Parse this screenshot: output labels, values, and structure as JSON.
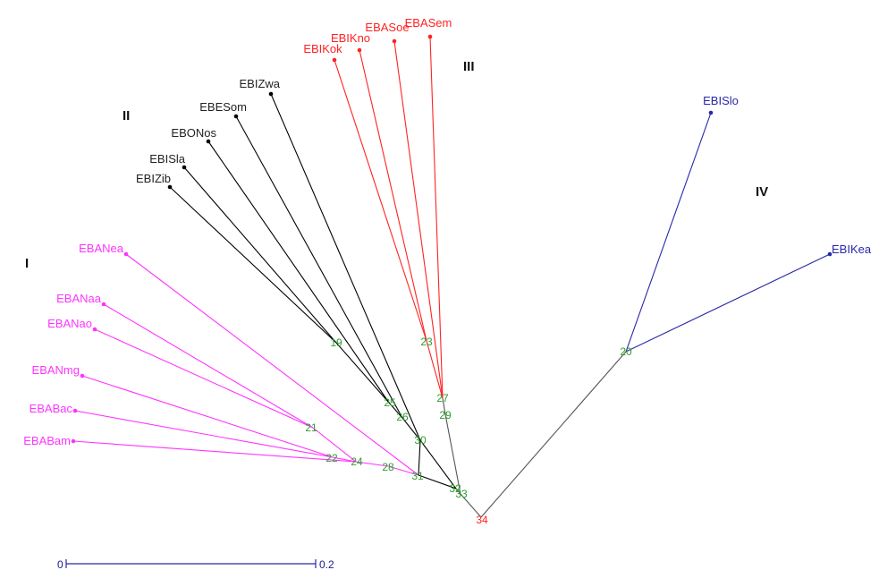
{
  "colors": {
    "cluster_I": "#ff33ff",
    "cluster_II": "#000000",
    "cluster_III": "#ff2222",
    "cluster_IV": "#2828aa",
    "node_label": "#2e9e2e",
    "root_label": "#ff2222",
    "trunk": "#777777"
  },
  "cluster_labels": {
    "I": "I",
    "II": "II",
    "III": "III",
    "IV": "IV"
  },
  "leaves": {
    "EBANea": "EBANea",
    "EBANaa": "EBANaa",
    "EBANao": "EBANao",
    "EBANmg": "EBANmg",
    "EBABac": "EBABac",
    "EBABam": "EBABam",
    "EBIZib": "EBIZib",
    "EBISla": "EBISla",
    "EBONos": "EBONos",
    "EBESom": "EBESom",
    "EBIZwa": "EBIZwa",
    "EBIKok": "EBIKok",
    "EBIKno": "EBIKno",
    "EBASoe": "EBASoe",
    "EBASem": "EBASem",
    "EBISlo": "EBISlo",
    "EBIKea": "EBIKea"
  },
  "nodes": {
    "n19": "19",
    "n20": "20",
    "n21": "21",
    "n22": "22",
    "n23": "23",
    "n24": "24",
    "n25": "25",
    "n26": "26",
    "n27": "27",
    "n28": "28",
    "n29": "29",
    "n30": "30",
    "n31": "31",
    "n32": "32",
    "n33": "33",
    "n34": "34"
  },
  "scale_bar": {
    "start_label": "0",
    "end_label": "0.2"
  }
}
